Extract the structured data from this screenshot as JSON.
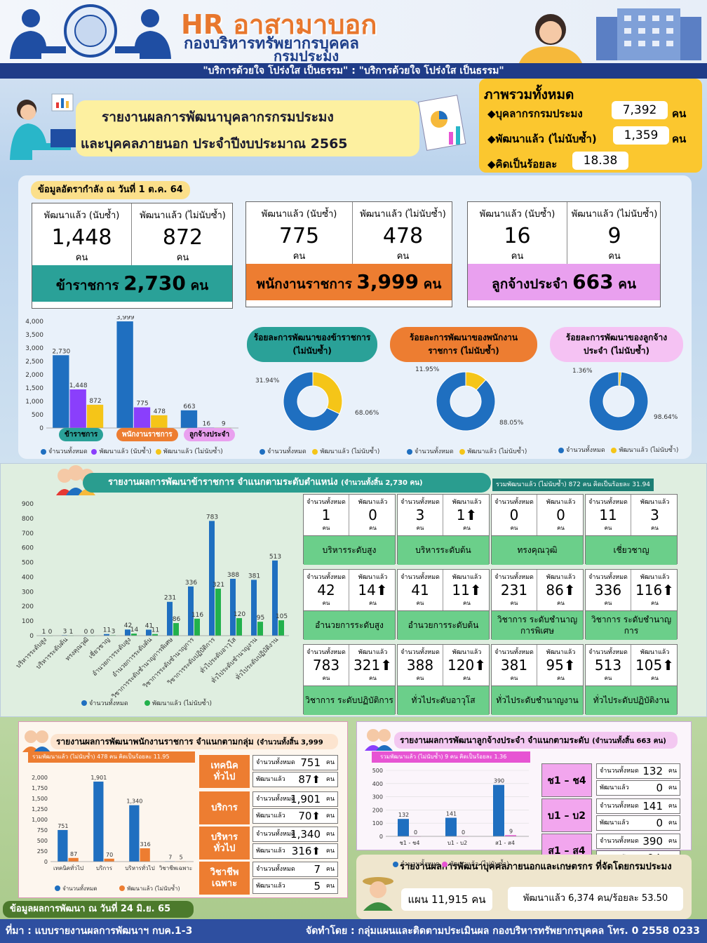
{
  "header": {
    "title": "HR อาสามาบอก",
    "dept": "กองบริหารทรัพยากรบุคคล",
    "org": "กรมประมง",
    "logo_text": "กรมประมง DEPARTMENT OF FISHERIES",
    "slogan": "\"บริการด้วยใจ โปร่งใส เป็นธรรม\" : \"บริการด้วยใจ โปร่งใส เป็นธรรม\""
  },
  "report": {
    "line1": "รายงานผลการพัฒนาบุคลากรกรมประมง",
    "line2": "และบุคคลภายนอก ประจำปีงบประมาณ  2565"
  },
  "overview": {
    "heading": "ภาพรวมทั้งหมด",
    "rows": [
      {
        "label": "◆บุคลากรกรมประมง",
        "value": "7,392",
        "unit": "คน"
      },
      {
        "label": "◆พัฒนาแล้ว (ไม่นับซ้ำ)",
        "value": "1,359",
        "unit": "คน"
      },
      {
        "label": "◆คิดเป็นร้อยละ",
        "value": "18.38",
        "unit": ""
      }
    ]
  },
  "workforce": {
    "tag": "ข้อมูลอัตรากำลัง ณ วันที่ 1 ต.ค. 64",
    "cards": [
      {
        "h1": "พัฒนาแล้ว (นับซ้ำ)",
        "v1": "1,448",
        "h2": "พัฒนาแล้ว (ไม่นับซ้ำ)",
        "v2": "872",
        "unit": "คน",
        "foot_label": "ข้าราชการ",
        "foot_value": "2,730",
        "foot_unit": "คน",
        "color": "#2aa198"
      },
      {
        "h1": "พัฒนาแล้ว (นับซ้ำ)",
        "v1": "775",
        "h2": "พัฒนาแล้ว (ไม่นับซ้ำ)",
        "v2": "478",
        "unit": "คน",
        "foot_label": "พนักงานราชการ",
        "foot_value": "3,999",
        "foot_unit": "คน",
        "color": "#ed7d31"
      },
      {
        "h1": "พัฒนาแล้ว (นับซ้ำ)",
        "v1": "16",
        "h2": "พัฒนาแล้ว (ไม่นับซ้ำ)",
        "v2": "9",
        "unit": "คน",
        "foot_label": "ลูกจ้างประจำ",
        "foot_value": "663",
        "foot_unit": "คน",
        "color": "#e9a0ef"
      }
    ]
  },
  "legend": {
    "total": "จำนวนทั้งหมด",
    "dev_count": "พัฒนาแล้ว (นับซ้ำ)",
    "dev_unique": "พัฒนาแล้ว (ไม่นับซ้ำ)"
  },
  "donuts": [
    {
      "title": "ร้อยละการพัฒนาของข้าราชการ (ไม่นับซ้ำ)",
      "pct_dev": "31.94%",
      "pct_total": "68.06%",
      "color": "#2aa198"
    },
    {
      "title": "ร้อยละการพัฒนาของพนักงานราชการ (ไม่นับซ้ำ)",
      "pct_dev": "11.95%",
      "pct_total": "88.05%",
      "color": "#ed7d31"
    },
    {
      "title": "ร้อยละการพัฒนาของลูกจ้างประจำ (ไม่นับซ้ำ)",
      "pct_dev": "1.36%",
      "pct_total": "98.64%",
      "color": "#f5c2f3"
    }
  ],
  "civil": {
    "title": "รายงานผลการพัฒนาข้าราชการ จำแนกตามระดับตำแหน่ง",
    "subtitle": "(จำนวนทั้งสิ้น 2,730 คน)",
    "note": "รวมพัฒนาแล้ว (ไม่นับซ้ำ) 872 คน คิดเป็นร้อยละ 31.94",
    "col_total": "จำนวนทั้งหมด",
    "col_dev": "พัฒนาแล้ว",
    "unit": "คน",
    "positions": [
      {
        "label": "บริหารระดับสูง",
        "total": "1",
        "dev": "0",
        "up": false
      },
      {
        "label": "บริหารระดับต้น",
        "total": "3",
        "dev": "1",
        "up": true
      },
      {
        "label": "ทรงคุณวุฒิ",
        "total": "0",
        "dev": "0",
        "up": false
      },
      {
        "label": "เชี่ยวชาญ",
        "total": "11",
        "dev": "3",
        "up": false
      },
      {
        "label": "อำนวยการระดับสูง",
        "total": "42",
        "dev": "14",
        "up": true
      },
      {
        "label": "อำนวยการระดับต้น",
        "total": "41",
        "dev": "11",
        "up": true
      },
      {
        "label": "วิชาการ ระดับชำนาญการพิเศษ",
        "total": "231",
        "dev": "86",
        "up": true
      },
      {
        "label": "วิชาการ ระดับชำนาญการ",
        "total": "336",
        "dev": "116",
        "up": true
      },
      {
        "label": "วิชาการ ระดับปฏิบัติการ",
        "total": "783",
        "dev": "321",
        "up": true
      },
      {
        "label": "ทั่วไประดับอาวุโส",
        "total": "388",
        "dev": "120",
        "up": true
      },
      {
        "label": "ทั่วไประดับชำนาญงาน",
        "total": "381",
        "dev": "95",
        "up": true
      },
      {
        "label": "ทั่วไประดับปฏิบัติงาน",
        "total": "513",
        "dev": "105",
        "up": true
      }
    ]
  },
  "chart_data": [
    {
      "type": "bar",
      "categories": [
        "ข้าราชการ",
        "พนักงานราชการ",
        "ลูกจ้างประจำ"
      ],
      "series": [
        {
          "name": "จำนวนทั้งหมด",
          "values": [
            2730,
            3999,
            663
          ],
          "color": "#1f6fc0"
        },
        {
          "name": "พัฒนาแล้ว (นับซ้ำ)",
          "values": [
            1448,
            775,
            16
          ],
          "color": "#8a3ffc"
        },
        {
          "name": "พัฒนาแล้ว (ไม่นับซ้ำ)",
          "values": [
            872,
            478,
            9
          ],
          "color": "#f5c518"
        }
      ],
      "ylim": [
        0,
        4000
      ],
      "yticks": [
        "0",
        "500",
        "1,000",
        "1,500",
        "2,000",
        "2,500",
        "3,000",
        "3,500",
        "4,000"
      ],
      "labels": [
        [
          "2,730",
          "1,448",
          "872"
        ],
        [
          "3,999",
          "775",
          "478"
        ],
        [
          "663",
          "16",
          "9"
        ]
      ]
    },
    {
      "type": "pie",
      "values": [
        68.06,
        31.94
      ],
      "labels": [
        "จำนวนทั้งหมด",
        "พัฒนาแล้ว (ไม่นับซ้ำ)"
      ],
      "colors": [
        "#1f6fc0",
        "#f5c518"
      ]
    },
    {
      "type": "pie",
      "values": [
        88.05,
        11.95
      ],
      "labels": [
        "จำนวนทั้งหมด",
        "พัฒนาแล้ว (ไม่นับซ้ำ)"
      ],
      "colors": [
        "#1f6fc0",
        "#f5c518"
      ]
    },
    {
      "type": "pie",
      "values": [
        98.64,
        1.36
      ],
      "labels": [
        "จำนวนทั้งหมด",
        "พัฒนาแล้ว (ไม่นับซ้ำ)"
      ],
      "colors": [
        "#1f6fc0",
        "#f5c518"
      ]
    },
    {
      "type": "bar",
      "categories": [
        "บริหารระดับสูง",
        "บริหารระดับต้น",
        "ทรงคุณวุฒิ",
        "เชี่ยวชาญ",
        "อำนวยการระดับสูง",
        "อำนวยการระดับต้น",
        "วิชาการระดับชำนาญการพิเศษ",
        "วิชาการระดับชำนาญการ",
        "วิชาการระดับปฏิบัติการ",
        "ทั่วไประดับอาวุโส",
        "ทั่วไประดับชำนาญงาน",
        "ทั่วไประดับปฏิบัติงาน"
      ],
      "series": [
        {
          "name": "จำนวนทั้งหมด",
          "values": [
            1,
            3,
            0,
            11,
            42,
            41,
            231,
            336,
            783,
            388,
            381,
            513
          ],
          "color": "#1f6fc0"
        },
        {
          "name": "พัฒนาแล้ว (ไม่นับซ้ำ)",
          "values": [
            0,
            1,
            0,
            3,
            14,
            11,
            86,
            116,
            321,
            120,
            95,
            105
          ],
          "color": "#22b14c"
        }
      ],
      "ylim": [
        0,
        900
      ],
      "yticks": [
        "0",
        "100",
        "200",
        "300",
        "400",
        "500",
        "600",
        "700",
        "800",
        "900"
      ]
    },
    {
      "type": "bar",
      "categories": [
        "เทคนิคทั่วไป",
        "บริการ",
        "บริหารทั่วไป",
        "วิชาชีพเฉพาะ"
      ],
      "series": [
        {
          "name": "จำนวนทั้งหมด",
          "values": [
            751,
            1901,
            1340,
            7
          ],
          "color": "#1f6fc0"
        },
        {
          "name": "พัฒนาแล้ว (ไม่นับซ้ำ)",
          "values": [
            87,
            70,
            316,
            5
          ],
          "color": "#ed7d31"
        }
      ],
      "ylim": [
        0,
        2000
      ],
      "yticks": [
        "0",
        "250",
        "500",
        "750",
        "1,000",
        "1,250",
        "1,500",
        "1,750",
        "2,000"
      ]
    },
    {
      "type": "bar",
      "categories": [
        "ช1 - ช4",
        "บ1 - บ2",
        "ส1 - ส4"
      ],
      "series": [
        {
          "name": "จำนวนทั้งหมด",
          "values": [
            132,
            141,
            390
          ],
          "color": "#1f6fc0"
        },
        {
          "name": "พัฒนาแล้ว (ไม่นับซ้ำ)",
          "values": [
            0,
            0,
            9
          ],
          "color": "#e754d3"
        }
      ],
      "ylim": [
        0,
        500
      ],
      "yticks": [
        "0",
        "100",
        "200",
        "300",
        "400",
        "500"
      ]
    }
  ],
  "govemp": {
    "title": "รายงานผลการพัฒนาพนักงานราชการ  จำแนกตามกลุ่ม",
    "subtitle": "(จำนวนทั้งสิ้น 3,999 คน)",
    "note": "รวมพัฒนาแล้ว (ไม่นับซ้ำ) 478 คน คิดเป็นร้อยละ 11.95",
    "lab_total": "จำนวนทั้งหมด",
    "lab_dev": "พัฒนาแล้ว",
    "unit": "คน",
    "groups": [
      {
        "label": "เทคนิค ทั่วไป",
        "total": "751",
        "dev": "87",
        "up": true
      },
      {
        "label": "บริการ",
        "total": "1,901",
        "dev": "70",
        "up": true
      },
      {
        "label": "บริหาร ทั่วไป",
        "total": "1,340",
        "dev": "316",
        "up": true
      },
      {
        "label": "วิชาชีพ เฉพาะ",
        "total": "7",
        "dev": "5",
        "up": false
      }
    ]
  },
  "perm": {
    "title": "รายงานผลการพัฒนาลูกจ้างประจำ  จำแนกตามระดับ",
    "subtitle": "(จำนวนทั้งสิ้น 663 คน)",
    "note": "รวมพัฒนาแล้ว (ไม่นับซ้ำ) 9 คน คิดเป็นร้อยละ 1.36",
    "levels": [
      {
        "label": "ช1 – ช4",
        "total": "132",
        "dev": "0",
        "up": false
      },
      {
        "label": "บ1 – บ2",
        "total": "141",
        "dev": "0",
        "up": false
      },
      {
        "label": "ส1 – ส4",
        "total": "390",
        "dev": "9",
        "up": true
      }
    ]
  },
  "outside": {
    "title": "รายงานผลการพัฒนาบุคคลภายนอกและเกษตรกร  ที่จัดโดยกรมประมง",
    "plan": "แผน 11,915 คน",
    "developed": "พัฒนาแล้ว 6,374 คน/ร้อยละ  53.50"
  },
  "dataAsOf": "ข้อมูลผลการพัฒนา  ณ วันที่ 24 มิ.ย. 65",
  "footer": {
    "source": "ที่มา : แบบรายงานผลการพัฒนาฯ กบค.1-3",
    "credit": "จัดทำโดย : กลุ่มแผนและติดตามประเมินผล กองบริหารทรัพยากรบุคคล โทร. 0 2558 0233"
  }
}
